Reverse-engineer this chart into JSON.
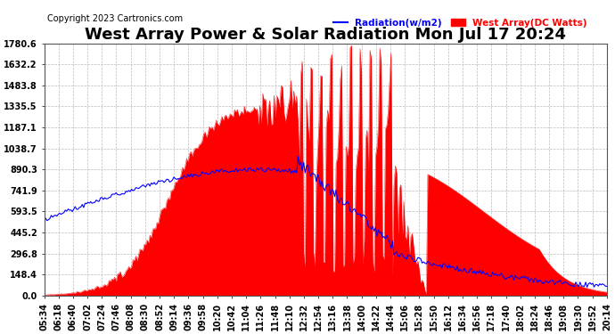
{
  "title": "West Array Power & Solar Radiation Mon Jul 17 20:24",
  "copyright": "Copyright 2023 Cartronics.com",
  "legend_radiation": "Radiation(w/m2)",
  "legend_west": "West Array(DC Watts)",
  "radiation_color": "blue",
  "west_color": "red",
  "background_color": "#ffffff",
  "plot_bg_color": "#ffffff",
  "grid_color": "#bbbbbb",
  "ymin": 0.0,
  "ymax": 1780.6,
  "yticks": [
    0.0,
    148.4,
    296.8,
    445.2,
    593.5,
    741.9,
    890.3,
    1038.7,
    1187.1,
    1335.5,
    1483.8,
    1632.2,
    1780.6
  ],
  "xtick_labels": [
    "05:34",
    "06:18",
    "06:40",
    "07:02",
    "07:24",
    "07:46",
    "08:08",
    "08:30",
    "08:52",
    "09:14",
    "09:36",
    "09:58",
    "10:20",
    "10:42",
    "11:04",
    "11:26",
    "11:48",
    "12:10",
    "12:32",
    "12:54",
    "13:16",
    "13:38",
    "14:00",
    "14:22",
    "14:44",
    "15:06",
    "15:28",
    "15:50",
    "16:12",
    "16:34",
    "16:56",
    "17:18",
    "17:40",
    "18:02",
    "18:24",
    "18:46",
    "19:08",
    "19:30",
    "19:52",
    "20:14"
  ],
  "title_fontsize": 13,
  "tick_fontsize": 7,
  "copyright_fontsize": 7
}
